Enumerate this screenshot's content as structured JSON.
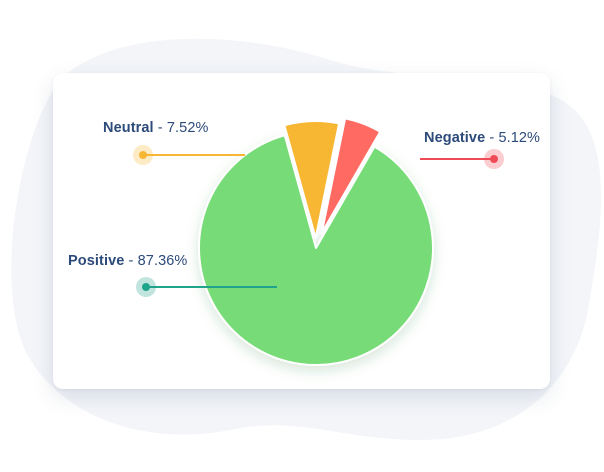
{
  "chart_data": {
    "type": "pie",
    "title": "",
    "slices": [
      {
        "label": "Positive",
        "value": 87.36,
        "display": "87.36%",
        "color": "#77dc77",
        "dot_color": "#1fa38a"
      },
      {
        "label": "Neutral",
        "value": 7.52,
        "display": "7.52%",
        "color": "#f7b733",
        "dot_color": "#f7b733"
      },
      {
        "label": "Negative",
        "value": 5.12,
        "display": "5.12%",
        "color": "#ff6b63",
        "dot_color": "#ef4b57"
      }
    ],
    "separator": " - ",
    "legend_placement": "callouts"
  },
  "colors": {
    "label_text": "#2c4a7a",
    "card_background": "#ffffff",
    "background_blob": "#f3f5f9"
  }
}
